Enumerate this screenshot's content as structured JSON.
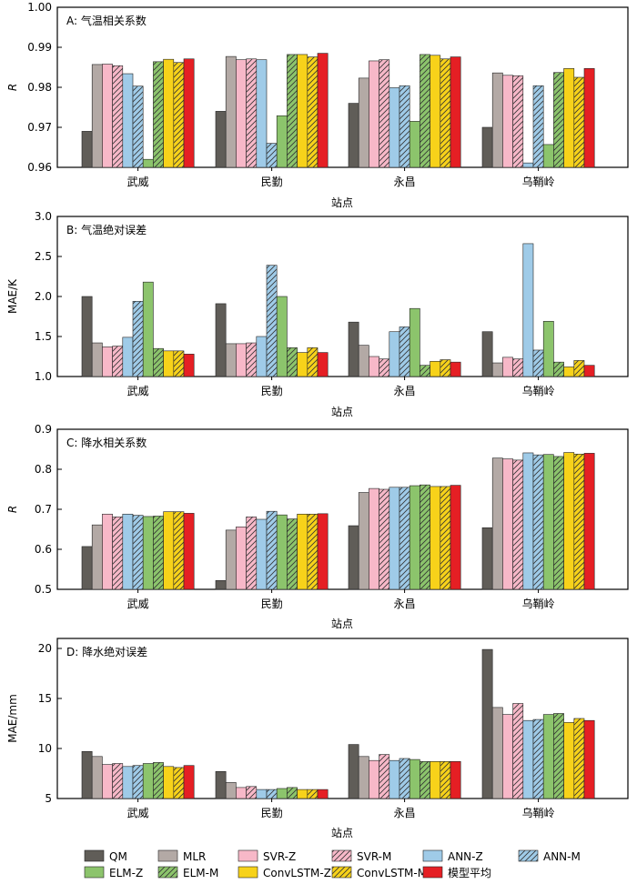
{
  "series_styles": [
    {
      "name": "QM",
      "color": "#605d58",
      "hatch": false
    },
    {
      "name": "MLR",
      "color": "#b3a9a5",
      "hatch": false
    },
    {
      "name": "SVR-Z",
      "color": "#f7b8c8",
      "hatch": false
    },
    {
      "name": "SVR-M",
      "color": "#f7b8c8",
      "hatch": true
    },
    {
      "name": "ANN-Z",
      "color": "#9fcbe8",
      "hatch": false
    },
    {
      "name": "ANN-M",
      "color": "#9fcbe8",
      "hatch": true
    },
    {
      "name": "ELM-Z",
      "color": "#8cc46c",
      "hatch": false
    },
    {
      "name": "ELM-M",
      "color": "#8cc46c",
      "hatch": true
    },
    {
      "name": "ConvLSTM-Z",
      "color": "#f7d21a",
      "hatch": false
    },
    {
      "name": "ConvLSTM-M",
      "color": "#f7d21a",
      "hatch": true
    },
    {
      "name": "模型平均",
      "color": "#e51f24",
      "hatch": false
    }
  ],
  "chart_data": [
    {
      "type": "bar",
      "title": "A: 气温相关系数",
      "xlabel": "站点",
      "ylabel": "R",
      "ylim": [
        0.96,
        1.0
      ],
      "yticks": [
        "0.96",
        "0.97",
        "0.98",
        "0.99",
        "1.00"
      ],
      "categories": [
        "武威",
        "民勤",
        "永昌",
        "乌鞘岭"
      ],
      "series": [
        {
          "name": "QM",
          "values": [
            0.969,
            0.974,
            0.976,
            0.97
          ]
        },
        {
          "name": "MLR",
          "values": [
            0.9857,
            0.9877,
            0.9823,
            0.9836
          ]
        },
        {
          "name": "SVR-Z",
          "values": [
            0.9858,
            0.9869,
            0.9866,
            0.983
          ]
        },
        {
          "name": "SVR-M",
          "values": [
            0.9854,
            0.9871,
            0.9869,
            0.9829
          ]
        },
        {
          "name": "ANN-Z",
          "values": [
            0.9834,
            0.9869,
            0.9799,
            0.9611
          ]
        },
        {
          "name": "ANN-M",
          "values": [
            0.9803,
            0.966,
            0.9804,
            0.9804
          ]
        },
        {
          "name": "ELM-Z",
          "values": [
            0.962,
            0.9729,
            0.9715,
            0.9657
          ]
        },
        {
          "name": "ELM-M",
          "values": [
            0.9864,
            0.9882,
            0.9882,
            0.9837
          ]
        },
        {
          "name": "ConvLSTM-Z",
          "values": [
            0.987,
            0.9882,
            0.988,
            0.9847
          ]
        },
        {
          "name": "ConvLSTM-M",
          "values": [
            0.9862,
            0.9876,
            0.9871,
            0.9825
          ]
        },
        {
          "name": "模型平均",
          "values": [
            0.9871,
            0.9885,
            0.9876,
            0.9847
          ]
        }
      ]
    },
    {
      "type": "bar",
      "title": "B: 气温绝对误差",
      "xlabel": "站点",
      "ylabel": "MAE/K",
      "ylim": [
        1.0,
        3.0
      ],
      "yticks": [
        "1.0",
        "1.5",
        "2.0",
        "2.5",
        "3.0"
      ],
      "categories": [
        "武威",
        "民勤",
        "永昌",
        "乌鞘岭"
      ],
      "series": [
        {
          "name": "QM",
          "values": [
            2.0,
            1.91,
            1.68,
            1.56
          ]
        },
        {
          "name": "MLR",
          "values": [
            1.42,
            1.41,
            1.39,
            1.17
          ]
        },
        {
          "name": "SVR-Z",
          "values": [
            1.37,
            1.41,
            1.25,
            1.24
          ]
        },
        {
          "name": "SVR-M",
          "values": [
            1.38,
            1.42,
            1.22,
            1.22
          ]
        },
        {
          "name": "ANN-Z",
          "values": [
            1.49,
            1.5,
            1.56,
            2.66
          ]
        },
        {
          "name": "ANN-M",
          "values": [
            1.94,
            2.39,
            1.62,
            1.33
          ]
        },
        {
          "name": "ELM-Z",
          "values": [
            2.18,
            2.0,
            1.85,
            1.69
          ]
        },
        {
          "name": "ELM-M",
          "values": [
            1.35,
            1.36,
            1.14,
            1.18
          ]
        },
        {
          "name": "ConvLSTM-Z",
          "values": [
            1.32,
            1.3,
            1.19,
            1.12
          ]
        },
        {
          "name": "ConvLSTM-M",
          "values": [
            1.32,
            1.36,
            1.21,
            1.2
          ]
        },
        {
          "name": "模型平均",
          "values": [
            1.28,
            1.3,
            1.18,
            1.14
          ]
        }
      ]
    },
    {
      "type": "bar",
      "title": "C: 降水相关系数",
      "xlabel": "站点",
      "ylabel": "R",
      "ylim": [
        0.5,
        0.9
      ],
      "yticks": [
        "0.5",
        "0.6",
        "0.7",
        "0.8",
        "0.9"
      ],
      "categories": [
        "武威",
        "民勤",
        "永昌",
        "乌鞘岭"
      ],
      "series": [
        {
          "name": "QM",
          "values": [
            0.607,
            0.522,
            0.659,
            0.654
          ]
        },
        {
          "name": "MLR",
          "values": [
            0.661,
            0.648,
            0.742,
            0.828
          ]
        },
        {
          "name": "SVR-Z",
          "values": [
            0.688,
            0.656,
            0.752,
            0.826
          ]
        },
        {
          "name": "SVR-M",
          "values": [
            0.681,
            0.681,
            0.75,
            0.823
          ]
        },
        {
          "name": "ANN-Z",
          "values": [
            0.688,
            0.675,
            0.755,
            0.841
          ]
        },
        {
          "name": "ANN-M",
          "values": [
            0.685,
            0.695,
            0.755,
            0.836
          ]
        },
        {
          "name": "ELM-Z",
          "values": [
            0.682,
            0.686,
            0.759,
            0.837
          ]
        },
        {
          "name": "ELM-M",
          "values": [
            0.683,
            0.676,
            0.761,
            0.832
          ]
        },
        {
          "name": "ConvLSTM-Z",
          "values": [
            0.694,
            0.688,
            0.757,
            0.842
          ]
        },
        {
          "name": "ConvLSTM-M",
          "values": [
            0.694,
            0.688,
            0.757,
            0.838
          ]
        },
        {
          "name": "模型平均",
          "values": [
            0.69,
            0.689,
            0.76,
            0.84
          ]
        }
      ]
    },
    {
      "type": "bar",
      "title": "D: 降水绝对误差",
      "xlabel": "站点",
      "ylabel": "MAE/mm",
      "ylim": [
        5,
        21
      ],
      "yticks": [
        "5",
        "10",
        "15",
        "20"
      ],
      "ytick_values": [
        5,
        10,
        15,
        20
      ],
      "categories": [
        "武威",
        "民勤",
        "永昌",
        "乌鞘岭"
      ],
      "series": [
        {
          "name": "QM",
          "values": [
            9.7,
            7.7,
            10.4,
            19.9
          ]
        },
        {
          "name": "MLR",
          "values": [
            9.2,
            6.6,
            9.2,
            14.1
          ]
        },
        {
          "name": "SVR-Z",
          "values": [
            8.4,
            6.1,
            8.8,
            13.4
          ]
        },
        {
          "name": "SVR-M",
          "values": [
            8.5,
            6.2,
            9.4,
            14.5
          ]
        },
        {
          "name": "ANN-Z",
          "values": [
            8.2,
            5.9,
            8.8,
            12.8
          ]
        },
        {
          "name": "ANN-M",
          "values": [
            8.3,
            5.9,
            9.0,
            12.9
          ]
        },
        {
          "name": "ELM-Z",
          "values": [
            8.5,
            6.0,
            8.9,
            13.4
          ]
        },
        {
          "name": "ELM-M",
          "values": [
            8.6,
            6.1,
            8.7,
            13.5
          ]
        },
        {
          "name": "ConvLSTM-Z",
          "values": [
            8.2,
            5.9,
            8.7,
            12.6
          ]
        },
        {
          "name": "ConvLSTM-M",
          "values": [
            8.1,
            5.9,
            8.7,
            13.0
          ]
        },
        {
          "name": "模型平均",
          "values": [
            8.3,
            5.9,
            8.7,
            12.8
          ]
        }
      ]
    }
  ]
}
